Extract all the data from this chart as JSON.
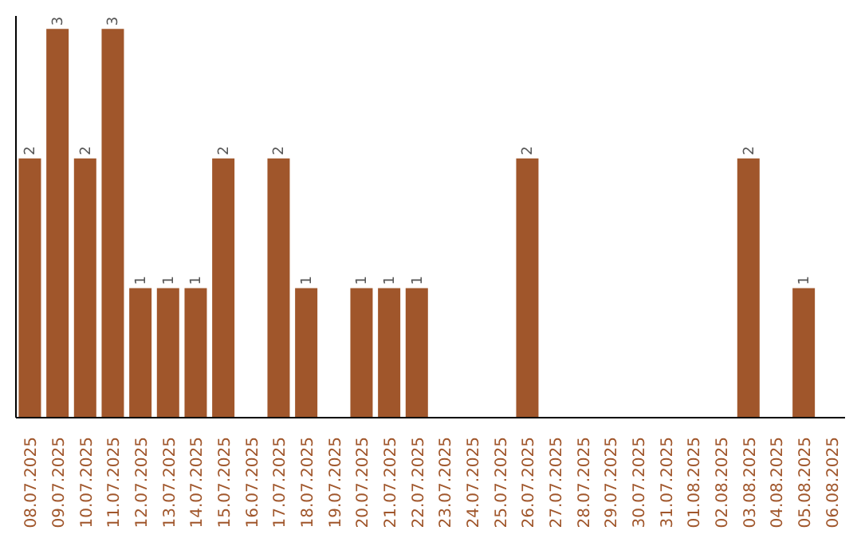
{
  "chart_data": {
    "type": "bar",
    "categories": [
      "08.07.2025",
      "09.07.2025",
      "10.07.2025",
      "11.07.2025",
      "12.07.2025",
      "13.07.2025",
      "14.07.2025",
      "15.07.2025",
      "16.07.2025",
      "17.07.2025",
      "18.07.2025",
      "19.07.2025",
      "20.07.2025",
      "21.07.2025",
      "22.07.2025",
      "23.07.2025",
      "24.07.2025",
      "25.07.2025",
      "26.07.2025",
      "27.07.2025",
      "28.07.2025",
      "29.07.2025",
      "30.07.2025",
      "31.07.2025",
      "01.08.2025",
      "02.08.2025",
      "03.08.2025",
      "04.08.2025",
      "05.08.2025",
      "06.08.2025"
    ],
    "values": [
      2,
      3,
      2,
      3,
      1,
      1,
      1,
      2,
      0,
      2,
      1,
      0,
      1,
      1,
      1,
      0,
      0,
      0,
      2,
      0,
      0,
      0,
      0,
      0,
      0,
      0,
      2,
      0,
      1,
      0
    ],
    "value_labels": [
      "2",
      "3",
      "2",
      "3",
      "1",
      "1",
      "1",
      "2",
      null,
      "2",
      "1",
      null,
      "1",
      "1",
      "1",
      null,
      null,
      null,
      "2",
      null,
      null,
      null,
      null,
      null,
      null,
      null,
      "2",
      null,
      "1",
      null
    ],
    "color": "#a0562b",
    "ylim": [
      0,
      3.1
    ],
    "tick_labels": "x",
    "grid": false,
    "legend": false
  }
}
